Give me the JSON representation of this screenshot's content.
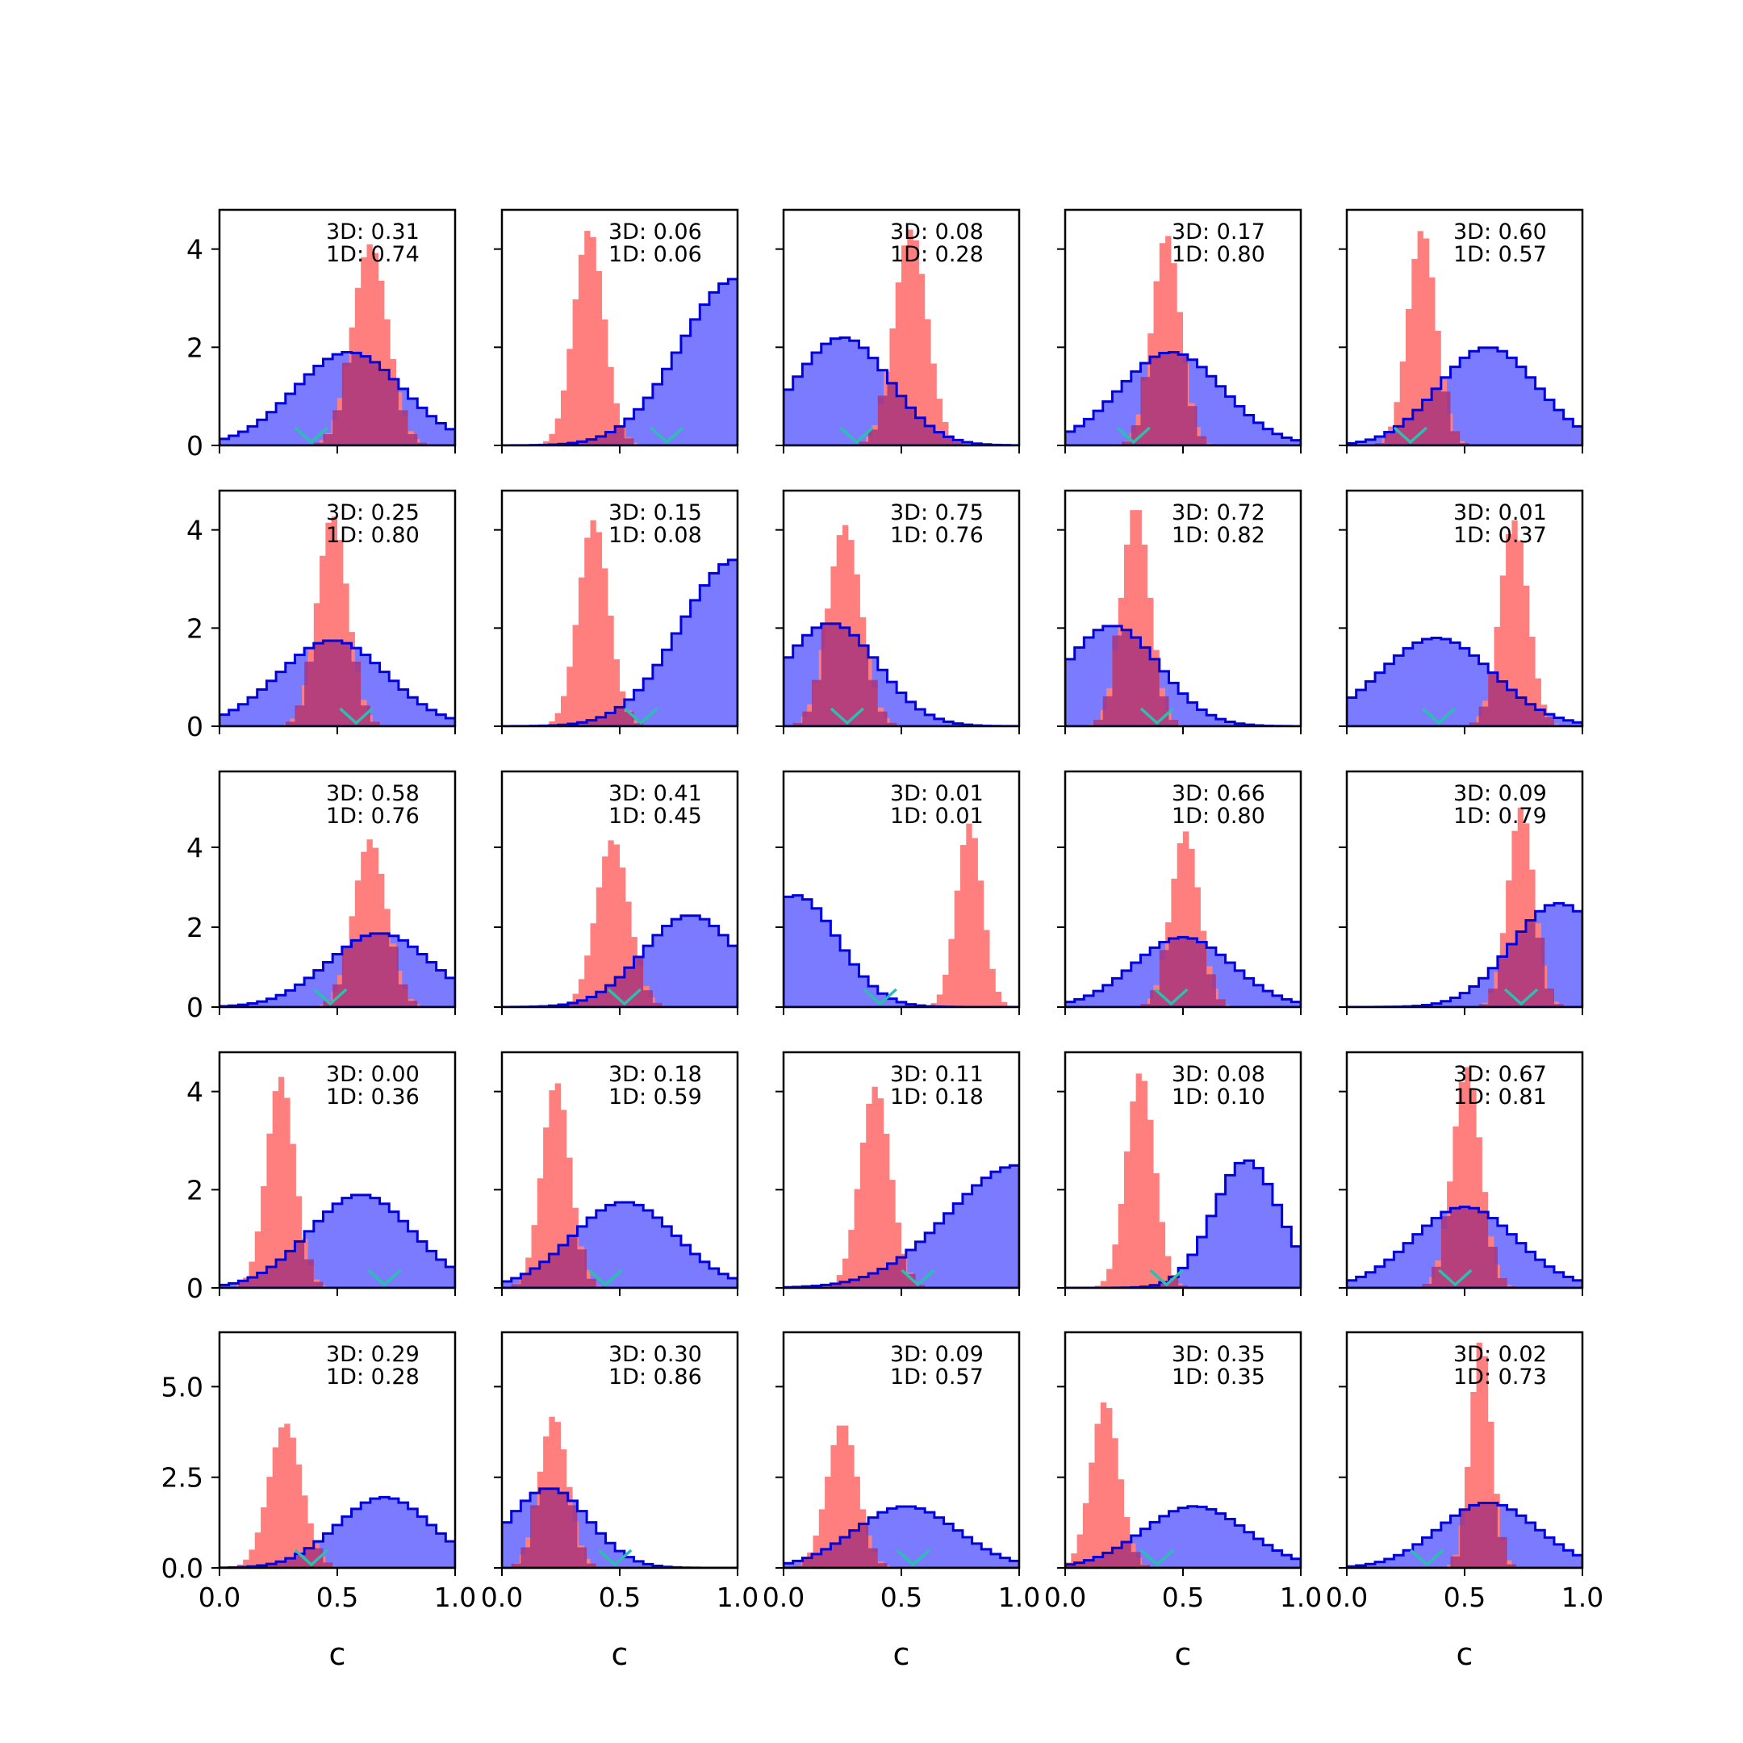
{
  "chart_data": {
    "type": "histogram-grid",
    "rows": 5,
    "cols": 5,
    "xlabel": "c",
    "xlim": [
      0,
      1
    ],
    "x_ticks": [
      0.0,
      0.5,
      1.0
    ],
    "x_tick_labels": [
      "0.0",
      "0.5",
      "1.0"
    ],
    "row_ylims": [
      [
        0,
        4.8
      ],
      [
        0,
        4.8
      ],
      [
        0,
        5.9
      ],
      [
        0,
        4.8
      ],
      [
        0,
        6.5
      ]
    ],
    "row_yticks": [
      [
        "0",
        "2",
        "4"
      ],
      [
        "0",
        "2",
        "4"
      ],
      [
        "0",
        "2",
        "4"
      ],
      [
        "0",
        "2",
        "4"
      ],
      [
        "0.0",
        "2.5",
        "5.0"
      ]
    ],
    "colors": {
      "blue_fill": "#7b7bff",
      "blue_edge": "#0000dd",
      "red_fill": "#ff7f7f",
      "overlap": "#a8357a",
      "marker": "#2bbfb0"
    },
    "panels": [
      {
        "text3d": "3D: 0.31",
        "text1d": "1D: 0.74",
        "blue": {
          "mode": 0.55,
          "sd": 0.23,
          "peak": 1.9
        },
        "red": {
          "mode": 0.64,
          "sd": 0.075,
          "peak": 4.1
        },
        "marker": 0.39
      },
      {
        "text3d": "3D: 0.06",
        "text1d": "1D: 0.06",
        "blue": {
          "mode": 1.0,
          "sd": 0.24,
          "peak": 3.4
        },
        "red": {
          "mode": 0.37,
          "sd": 0.065,
          "peak": 4.4
        },
        "marker": 0.7
      },
      {
        "text3d": "3D: 0.08",
        "text1d": "1D: 0.28",
        "blue": {
          "mode": 0.25,
          "sd": 0.2,
          "peak": 2.2
        },
        "red": {
          "mode": 0.54,
          "sd": 0.07,
          "peak": 4.4
        },
        "marker": 0.31
      },
      {
        "text3d": "3D: 0.17",
        "text1d": "1D: 0.80",
        "blue": {
          "mode": 0.45,
          "sd": 0.22,
          "peak": 1.9
        },
        "red": {
          "mode": 0.43,
          "sd": 0.06,
          "peak": 4.3
        },
        "marker": 0.29
      },
      {
        "text3d": "3D: 0.60",
        "text1d": "1D: 0.57",
        "blue": {
          "mode": 0.6,
          "sd": 0.21,
          "peak": 2.0
        },
        "red": {
          "mode": 0.32,
          "sd": 0.06,
          "peak": 4.4
        },
        "marker": 0.27
      },
      {
        "text3d": "3D: 0.25",
        "text1d": "1D: 0.80",
        "blue": {
          "mode": 0.48,
          "sd": 0.23,
          "peak": 1.75
        },
        "red": {
          "mode": 0.48,
          "sd": 0.065,
          "peak": 4.3
        },
        "marker": 0.58
      },
      {
        "text3d": "3D: 0.15",
        "text1d": "1D: 0.08",
        "blue": {
          "mode": 1.0,
          "sd": 0.24,
          "peak": 3.4
        },
        "red": {
          "mode": 0.39,
          "sd": 0.065,
          "peak": 4.2
        },
        "marker": 0.59
      },
      {
        "text3d": "3D: 0.75",
        "text1d": "1D: 0.76",
        "blue": {
          "mode": 0.2,
          "sd": 0.2,
          "peak": 2.1
        },
        "red": {
          "mode": 0.26,
          "sd": 0.07,
          "peak": 4.1
        },
        "marker": 0.27
      },
      {
        "text3d": "3D: 0.72",
        "text1d": "1D: 0.82",
        "blue": {
          "mode": 0.2,
          "sd": 0.2,
          "peak": 2.05
        },
        "red": {
          "mode": 0.3,
          "sd": 0.06,
          "peak": 4.5
        },
        "marker": 0.39
      },
      {
        "text3d": "3D: 0.01",
        "text1d": "1D: 0.37",
        "blue": {
          "mode": 0.38,
          "sd": 0.24,
          "peak": 1.8
        },
        "red": {
          "mode": 0.71,
          "sd": 0.06,
          "peak": 4.2
        },
        "marker": 0.39
      },
      {
        "text3d": "3D: 0.58",
        "text1d": "1D: 0.76",
        "blue": {
          "mode": 0.68,
          "sd": 0.22,
          "peak": 1.85
        },
        "red": {
          "mode": 0.64,
          "sd": 0.07,
          "peak": 4.2
        },
        "marker": 0.47
      },
      {
        "text3d": "3D: 0.41",
        "text1d": "1D: 0.45",
        "blue": {
          "mode": 0.8,
          "sd": 0.2,
          "peak": 2.3
        },
        "red": {
          "mode": 0.47,
          "sd": 0.07,
          "peak": 4.2
        },
        "marker": 0.52
      },
      {
        "text3d": "3D: 0.01",
        "text1d": "1D: 0.01",
        "blue": {
          "mode": 0.05,
          "sd": 0.18,
          "peak": 2.8
        },
        "red": {
          "mode": 0.79,
          "sd": 0.055,
          "peak": 4.6
        },
        "marker": 0.41
      },
      {
        "text3d": "3D: 0.66",
        "text1d": "1D: 0.80",
        "blue": {
          "mode": 0.5,
          "sd": 0.21,
          "peak": 1.75
        },
        "red": {
          "mode": 0.51,
          "sd": 0.06,
          "peak": 4.4
        },
        "marker": 0.45
      },
      {
        "text3d": "3D: 0.09",
        "text1d": "1D: 0.79",
        "blue": {
          "mode": 0.9,
          "sd": 0.2,
          "peak": 2.6
        },
        "red": {
          "mode": 0.74,
          "sd": 0.055,
          "peak": 5.0
        },
        "marker": 0.74
      },
      {
        "text3d": "3D: 0.00",
        "text1d": "1D: 0.36",
        "blue": {
          "mode": 0.6,
          "sd": 0.22,
          "peak": 1.9
        },
        "red": {
          "mode": 0.26,
          "sd": 0.06,
          "peak": 4.3
        },
        "marker": 0.7
      },
      {
        "text3d": "3D: 0.18",
        "text1d": "1D: 0.59",
        "blue": {
          "mode": 0.52,
          "sd": 0.22,
          "peak": 1.75
        },
        "red": {
          "mode": 0.23,
          "sd": 0.06,
          "peak": 4.2
        },
        "marker": 0.44
      },
      {
        "text3d": "3D: 0.11",
        "text1d": "1D: 0.18",
        "blue": {
          "mode": 1.0,
          "sd": 0.3,
          "peak": 2.5
        },
        "red": {
          "mode": 0.39,
          "sd": 0.065,
          "peak": 4.1
        },
        "marker": 0.57
      },
      {
        "text3d": "3D: 0.08",
        "text1d": "1D: 0.10",
        "blue": {
          "mode": 0.77,
          "sd": 0.14,
          "peak": 2.6
        },
        "red": {
          "mode": 0.32,
          "sd": 0.06,
          "peak": 4.4
        },
        "marker": 0.43
      },
      {
        "text3d": "3D: 0.67",
        "text1d": "1D: 0.81",
        "blue": {
          "mode": 0.5,
          "sd": 0.22,
          "peak": 1.65
        },
        "red": {
          "mode": 0.51,
          "sd": 0.06,
          "peak": 4.5
        },
        "marker": 0.46
      },
      {
        "text3d": "3D: 0.29",
        "text1d": "1D: 0.28",
        "blue": {
          "mode": 0.7,
          "sd": 0.2,
          "peak": 1.95
        },
        "red": {
          "mode": 0.28,
          "sd": 0.07,
          "peak": 4.0
        },
        "marker": 0.39
      },
      {
        "text3d": "3D: 0.30",
        "text1d": "1D: 0.86",
        "blue": {
          "mode": 0.2,
          "sd": 0.17,
          "peak": 2.2
        },
        "red": {
          "mode": 0.22,
          "sd": 0.06,
          "peak": 4.2
        },
        "marker": 0.48
      },
      {
        "text3d": "3D: 0.09",
        "text1d": "1D: 0.57",
        "blue": {
          "mode": 0.52,
          "sd": 0.22,
          "peak": 1.7
        },
        "red": {
          "mode": 0.25,
          "sd": 0.065,
          "peak": 4.0
        },
        "marker": 0.55
      },
      {
        "text3d": "3D: 0.35",
        "text1d": "1D: 0.35",
        "blue": {
          "mode": 0.55,
          "sd": 0.22,
          "peak": 1.7
        },
        "red": {
          "mode": 0.17,
          "sd": 0.06,
          "peak": 4.6
        },
        "marker": 0.39
      },
      {
        "text3d": "3D: 0.02",
        "text1d": "1D: 0.73",
        "blue": {
          "mode": 0.6,
          "sd": 0.21,
          "peak": 1.8
        },
        "red": {
          "mode": 0.57,
          "sd": 0.045,
          "peak": 6.3
        },
        "marker": 0.34
      }
    ]
  }
}
